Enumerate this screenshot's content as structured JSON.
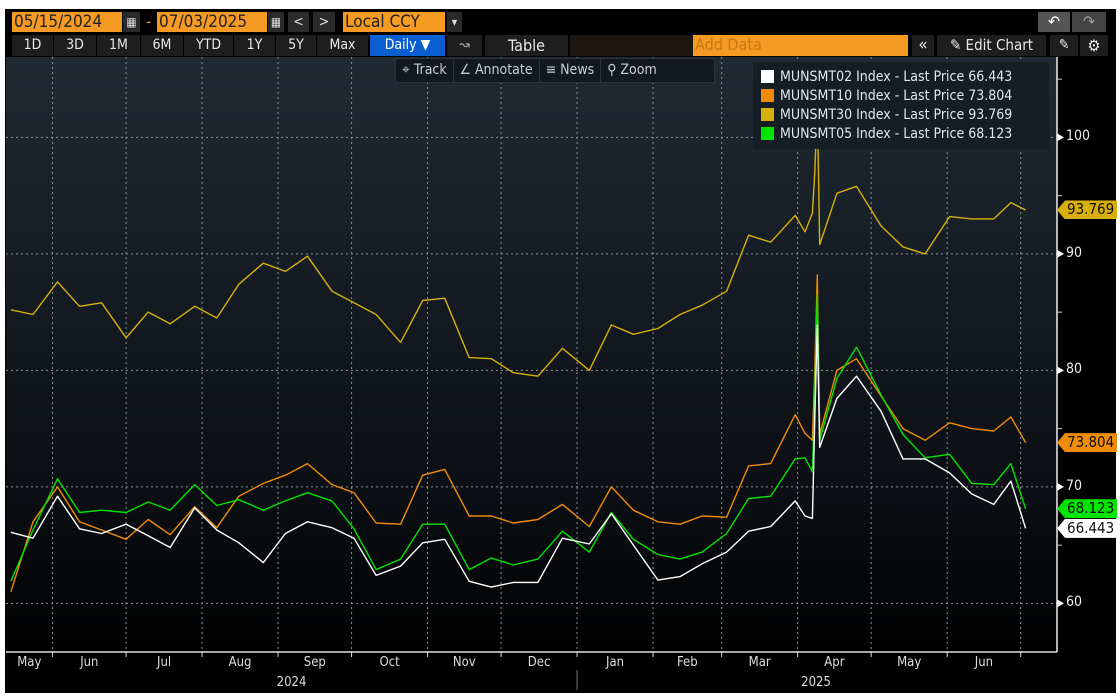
{
  "toolbar": {
    "start_date": "05/15/2024",
    "date_separator": "-",
    "end_date": "07/03/2025",
    "prev": "<",
    "next": ">",
    "currency": "Local CCY",
    "dropdown": "▾",
    "undo": "↶",
    "redo": "↷",
    "ranges": [
      "1D",
      "3D",
      "1M",
      "6M",
      "YTD",
      "1Y",
      "5Y",
      "Max"
    ],
    "frequency": "Daily ▼",
    "chart_type_icon": "line-chart-icon",
    "table": "Table",
    "add_data_placeholder": "Add Data",
    "collapse": "«",
    "edit_chart": "Edit Chart",
    "accent_color": "#f59a23",
    "selected_color": "#0a5fd0"
  },
  "chart_tools": {
    "track": "Track",
    "annotate": "Annotate",
    "news": "News",
    "zoom": "Zoom"
  },
  "chart_data": {
    "type": "line",
    "grid": true,
    "legend": "top-right",
    "xlim": [
      "2024-05-13",
      "2025-07-15"
    ],
    "ylim": [
      56,
      106.9
    ],
    "y_ticks": [
      60,
      70,
      80,
      90,
      100
    ],
    "y_axis_side": "right",
    "month_labels": [
      {
        "label": "May",
        "date": "2024-05"
      },
      {
        "label": "Jun",
        "date": "2024-06"
      },
      {
        "label": "Jul",
        "date": "2024-07"
      },
      {
        "label": "Aug",
        "date": "2024-08"
      },
      {
        "label": "Sep",
        "date": "2024-09"
      },
      {
        "label": "Oct",
        "date": "2024-10"
      },
      {
        "label": "Nov",
        "date": "2024-11"
      },
      {
        "label": "Dec",
        "date": "2024-12"
      },
      {
        "label": "Jan",
        "date": "2025-01"
      },
      {
        "label": "Feb",
        "date": "2025-02"
      },
      {
        "label": "Mar",
        "date": "2025-03"
      },
      {
        "label": "Apr",
        "date": "2025-04"
      },
      {
        "label": "May",
        "date": "2025-05"
      },
      {
        "label": "Jun",
        "date": "2025-06"
      }
    ],
    "year_labels": [
      {
        "label": "2024",
        "date": "2024"
      },
      {
        "label": "2025",
        "date": "2025"
      }
    ],
    "x": [
      "2024-05-15",
      "2024-05-24",
      "2024-06-03",
      "2024-06-12",
      "2024-06-21",
      "2024-07-01",
      "2024-07-10",
      "2024-07-19",
      "2024-07-29",
      "2024-08-07",
      "2024-08-16",
      "2024-08-26",
      "2024-09-04",
      "2024-09-13",
      "2024-09-23",
      "2024-10-02",
      "2024-10-11",
      "2024-10-21",
      "2024-10-30",
      "2024-11-08",
      "2024-11-18",
      "2024-11-27",
      "2024-12-06",
      "2024-12-16",
      "2024-12-26",
      "2025-01-06",
      "2025-01-15",
      "2025-01-24",
      "2025-02-03",
      "2025-02-12",
      "2025-02-21",
      "2025-03-03",
      "2025-03-12",
      "2025-03-21",
      "2025-03-31",
      "2025-04-04",
      "2025-04-07",
      "2025-04-08",
      "2025-04-09",
      "2025-04-10",
      "2025-04-17",
      "2025-04-25",
      "2025-05-05",
      "2025-05-14",
      "2025-05-23",
      "2025-06-02",
      "2025-06-11",
      "2025-06-20",
      "2025-06-27",
      "2025-07-03"
    ],
    "series": [
      {
        "name": "MUNSMT02 Index - Last Price",
        "last": "66.443",
        "color": "#ffffff",
        "values": [
          66.1,
          65.6,
          69.2,
          66.4,
          66.0,
          66.8,
          65.8,
          64.8,
          68.2,
          66.3,
          65.2,
          63.5,
          66.0,
          67.0,
          66.5,
          65.6,
          62.4,
          63.2,
          65.2,
          65.5,
          61.9,
          61.4,
          61.8,
          61.8,
          65.6,
          65.1,
          67.7,
          65.0,
          62.0,
          62.3,
          63.4,
          64.4,
          66.2,
          66.6,
          68.8,
          67.5,
          67.3,
          76.0,
          83.9,
          73.4,
          77.6,
          79.5,
          76.5,
          72.4,
          72.4,
          71.2,
          69.4,
          68.5,
          70.5,
          66.443
        ]
      },
      {
        "name": "MUNSMT10 Index - Last Price",
        "last": "73.804",
        "color": "#f08c0a",
        "values": [
          61.0,
          67.0,
          70.0,
          67.0,
          66.3,
          65.5,
          67.2,
          65.9,
          68.3,
          66.5,
          69.2,
          70.3,
          71.0,
          72.0,
          70.2,
          69.5,
          66.9,
          66.8,
          71.0,
          71.5,
          67.5,
          67.5,
          66.9,
          67.2,
          68.5,
          66.6,
          70.0,
          68.0,
          67.0,
          66.8,
          67.5,
          67.4,
          71.8,
          72.0,
          76.2,
          74.6,
          74.0,
          80.0,
          88.2,
          74.5,
          80.0,
          81.0,
          77.8,
          75.0,
          74.0,
          75.5,
          75.0,
          74.8,
          76.0,
          73.804
        ]
      },
      {
        "name": "MUNSMT30 Index - Last Price",
        "last": "93.769",
        "color": "#d8b00a",
        "values": [
          85.2,
          84.8,
          87.6,
          85.5,
          85.8,
          82.8,
          85.0,
          84.0,
          85.5,
          84.5,
          87.4,
          89.2,
          88.5,
          89.8,
          86.8,
          85.8,
          84.8,
          82.4,
          86.0,
          86.2,
          81.1,
          81.0,
          79.8,
          79.5,
          81.9,
          80.0,
          83.9,
          83.1,
          83.6,
          84.8,
          85.6,
          86.8,
          91.6,
          91.0,
          93.3,
          91.9,
          93.5,
          97.0,
          103.0,
          90.8,
          95.2,
          95.8,
          92.4,
          90.6,
          90.0,
          93.2,
          93.0,
          93.0,
          94.4,
          93.769
        ]
      },
      {
        "name": "MUNSMT05 Index - Last Price",
        "last": "68.123",
        "color": "#00e400",
        "values": [
          61.9,
          66.3,
          70.7,
          67.8,
          68.0,
          67.8,
          68.7,
          68.0,
          70.2,
          68.4,
          68.9,
          68.0,
          68.8,
          69.5,
          68.8,
          66.4,
          62.9,
          63.8,
          66.8,
          66.8,
          62.9,
          63.9,
          63.3,
          63.8,
          66.2,
          64.4,
          67.8,
          65.5,
          64.2,
          63.8,
          64.4,
          66.0,
          69.0,
          69.2,
          72.4,
          72.5,
          71.3,
          78.0,
          86.5,
          74.0,
          79.3,
          82.0,
          77.9,
          74.5,
          72.5,
          72.8,
          70.3,
          70.2,
          72.0,
          68.123
        ]
      }
    ],
    "legend_order": [
      0,
      1,
      2,
      3
    ]
  }
}
